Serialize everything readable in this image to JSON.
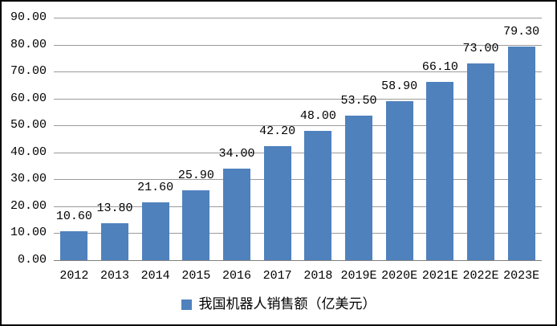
{
  "chart_data": {
    "type": "bar",
    "title": "",
    "categories": [
      "2012",
      "2013",
      "2014",
      "2015",
      "2016",
      "2017",
      "2018",
      "2019E",
      "2020E",
      "2021E",
      "2022E",
      "2023E"
    ],
    "values": [
      10.6,
      13.8,
      21.6,
      25.9,
      34.0,
      42.2,
      48.0,
      53.5,
      58.9,
      66.1,
      73.0,
      79.3
    ],
    "value_labels": [
      "10.60",
      "13.80",
      "21.60",
      "25.90",
      "34.00",
      "42.20",
      "48.00",
      "53.50",
      "58.90",
      "66.10",
      "73.00",
      "79.30"
    ],
    "series_name": "我国机器人销售额（亿美元）",
    "xlabel": "",
    "ylabel": "",
    "ylim": [
      0,
      90
    ],
    "ytick_step": 10,
    "ytick_labels": [
      "0.00",
      "10.00",
      "20.00",
      "30.00",
      "40.00",
      "50.00",
      "60.00",
      "70.00",
      "80.00",
      "90.00"
    ],
    "grid": true,
    "legend_position": "bottom",
    "colors": {
      "bar": "#4F81BD",
      "gridline": "#9a9a9a",
      "axis": "#808080",
      "text": "#000000",
      "background": "#ffffff",
      "frame_border": "#000000"
    }
  },
  "legend": {
    "label": "我国机器人销售额（亿美元）"
  }
}
